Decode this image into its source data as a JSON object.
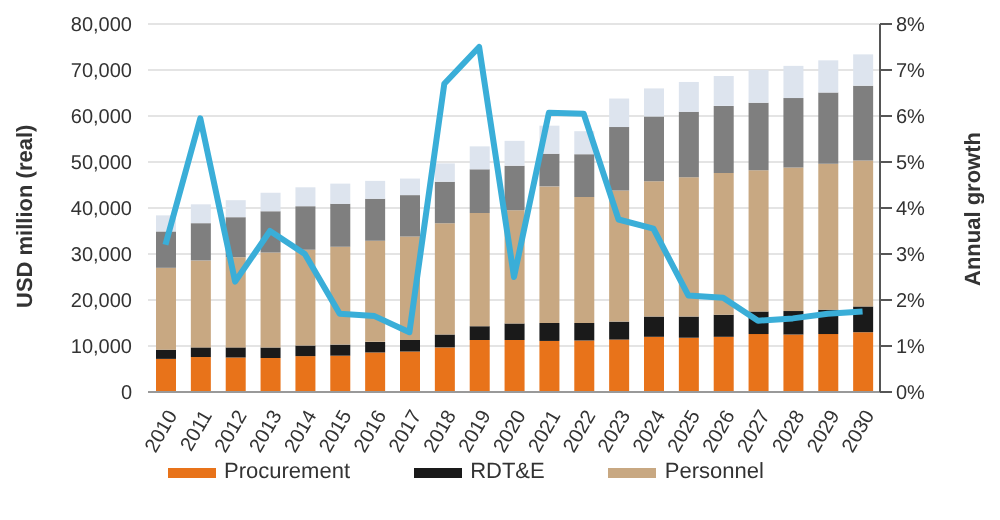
{
  "chart_data": {
    "type": "bar",
    "stacked": true,
    "categories": [
      "2010",
      "2011",
      "2012",
      "2013",
      "2014",
      "2015",
      "2016",
      "2017",
      "2018",
      "2019",
      "2020",
      "2021",
      "2022",
      "2023",
      "2024",
      "2025",
      "2026",
      "2027",
      "2028",
      "2029",
      "2030"
    ],
    "series": [
      {
        "name": "Procurement",
        "color": "#e8731a",
        "values": [
          7200,
          7600,
          7500,
          7400,
          7800,
          7900,
          8600,
          8800,
          9700,
          11300,
          11300,
          11100,
          11200,
          11400,
          12000,
          11800,
          12000,
          12600,
          12500,
          12600,
          13000
        ]
      },
      {
        "name": "RDT&E",
        "color": "#1a1a1a",
        "values": [
          2000,
          2100,
          2200,
          2300,
          2300,
          2400,
          2300,
          2500,
          2800,
          3000,
          3600,
          3900,
          3800,
          3900,
          4400,
          4600,
          4800,
          4900,
          5100,
          5300,
          5600
        ]
      },
      {
        "name": "Personnel",
        "color": "#c8a882",
        "values": [
          17800,
          18900,
          19600,
          20600,
          20800,
          21300,
          22000,
          22500,
          24200,
          24600,
          24600,
          29700,
          27400,
          28500,
          29400,
          30300,
          30800,
          30700,
          31200,
          31700,
          31700
        ]
      },
      {
        "color": "#7f7f7f",
        "values": [
          7900,
          8100,
          8700,
          9000,
          9500,
          9300,
          9100,
          9000,
          9000,
          9500,
          9700,
          7100,
          9300,
          13800,
          14100,
          14200,
          14600,
          14700,
          15100,
          15500,
          16300
        ]
      },
      {
        "color": "#dde4ee",
        "values": [
          3500,
          4100,
          3700,
          4000,
          4100,
          4400,
          3900,
          3600,
          4000,
          5000,
          5400,
          6100,
          5000,
          6200,
          6100,
          6500,
          6500,
          7100,
          7000,
          7000,
          6800
        ]
      },
      {
        "type": "line",
        "axis": "y2",
        "color": "#3aaed8",
        "values": [
          3.2,
          5.95,
          2.4,
          3.5,
          3.0,
          1.7,
          1.65,
          1.3,
          6.7,
          7.5,
          2.5,
          6.07,
          6.05,
          3.75,
          3.55,
          2.1,
          2.05,
          1.55,
          1.6,
          1.7,
          1.75
        ]
      }
    ],
    "ylabel": "USD million (real)",
    "y2label": "Annual growth",
    "ylim": [
      0,
      80000
    ],
    "yticks": [
      0,
      {
        "value": 10000,
        "label": "10,000"
      },
      {
        "value": 20000,
        "label": "20,000"
      },
      {
        "value": 30000,
        "label": "30,000"
      },
      {
        "value": 40000,
        "label": "40,000"
      },
      {
        "value": 50000,
        "label": "50,000"
      },
      {
        "value": 60000,
        "label": "60,000"
      },
      {
        "value": 70000,
        "label": "70,000"
      },
      {
        "value": 80000,
        "label": "80,000"
      }
    ],
    "y2lim": [
      0,
      8
    ],
    "y2ticks": [
      {
        "value": 0,
        "label": "0%"
      },
      {
        "value": 1,
        "label": "1%"
      },
      {
        "value": 2,
        "label": "2%"
      },
      {
        "value": 3,
        "label": "3%"
      },
      {
        "value": 4,
        "label": "4%"
      },
      {
        "value": 5,
        "label": "5%"
      },
      {
        "value": 6,
        "label": "6%"
      },
      {
        "value": 7,
        "label": "7%"
      },
      {
        "value": 8,
        "label": "8%"
      }
    ],
    "grid": "y",
    "legend": "bottom",
    "marker": "none"
  }
}
